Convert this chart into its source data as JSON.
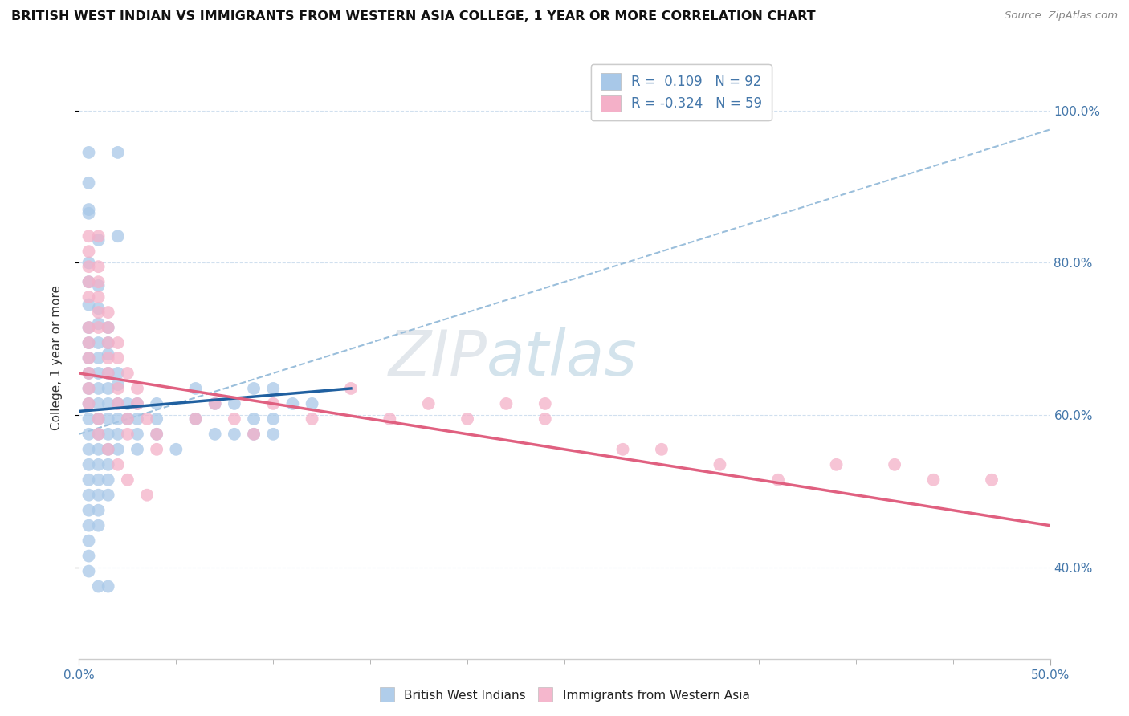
{
  "title": "BRITISH WEST INDIAN VS IMMIGRANTS FROM WESTERN ASIA COLLEGE, 1 YEAR OR MORE CORRELATION CHART",
  "source_text": "Source: ZipAtlas.com",
  "ylabel": "College, 1 year or more",
  "xlim": [
    0.0,
    0.5
  ],
  "ylim": [
    0.28,
    1.07
  ],
  "xticks_minor": [
    0.05,
    0.1,
    0.15,
    0.2,
    0.25,
    0.3,
    0.35,
    0.4,
    0.45
  ],
  "xtick_labels_ends": {
    "0.0": "0.0%",
    "0.50": "50.0%"
  },
  "yticks": [
    0.4,
    0.6,
    0.8,
    1.0
  ],
  "yticklabels_right": [
    "40.0%",
    "60.0%",
    "80.0%",
    "100.0%"
  ],
  "blue_color": "#a8c8e8",
  "pink_color": "#f4b0c8",
  "blue_line_color": "#2060a0",
  "pink_line_color": "#e06080",
  "dashed_line_color": "#90b8d8",
  "R1": 0.109,
  "N1": 92,
  "R2": -0.324,
  "N2": 59,
  "watermark": "ZIPatlas",
  "legend_label1": "British West Indians",
  "legend_label2": "Immigrants from Western Asia",
  "blue_scatter": [
    [
      0.005,
      0.945
    ],
    [
      0.02,
      0.945
    ],
    [
      0.005,
      0.905
    ],
    [
      0.005,
      0.87
    ],
    [
      0.005,
      0.865
    ],
    [
      0.01,
      0.83
    ],
    [
      0.02,
      0.835
    ],
    [
      0.005,
      0.8
    ],
    [
      0.005,
      0.775
    ],
    [
      0.01,
      0.77
    ],
    [
      0.005,
      0.745
    ],
    [
      0.01,
      0.74
    ],
    [
      0.005,
      0.715
    ],
    [
      0.01,
      0.72
    ],
    [
      0.015,
      0.715
    ],
    [
      0.005,
      0.695
    ],
    [
      0.01,
      0.695
    ],
    [
      0.015,
      0.695
    ],
    [
      0.005,
      0.675
    ],
    [
      0.01,
      0.675
    ],
    [
      0.015,
      0.68
    ],
    [
      0.005,
      0.655
    ],
    [
      0.01,
      0.655
    ],
    [
      0.015,
      0.655
    ],
    [
      0.02,
      0.655
    ],
    [
      0.005,
      0.635
    ],
    [
      0.01,
      0.635
    ],
    [
      0.015,
      0.635
    ],
    [
      0.02,
      0.64
    ],
    [
      0.005,
      0.615
    ],
    [
      0.01,
      0.615
    ],
    [
      0.015,
      0.615
    ],
    [
      0.02,
      0.615
    ],
    [
      0.025,
      0.615
    ],
    [
      0.005,
      0.595
    ],
    [
      0.01,
      0.595
    ],
    [
      0.015,
      0.595
    ],
    [
      0.02,
      0.595
    ],
    [
      0.025,
      0.595
    ],
    [
      0.005,
      0.575
    ],
    [
      0.01,
      0.575
    ],
    [
      0.015,
      0.575
    ],
    [
      0.02,
      0.575
    ],
    [
      0.005,
      0.555
    ],
    [
      0.01,
      0.555
    ],
    [
      0.015,
      0.555
    ],
    [
      0.02,
      0.555
    ],
    [
      0.005,
      0.535
    ],
    [
      0.01,
      0.535
    ],
    [
      0.015,
      0.535
    ],
    [
      0.005,
      0.515
    ],
    [
      0.01,
      0.515
    ],
    [
      0.015,
      0.515
    ],
    [
      0.005,
      0.495
    ],
    [
      0.01,
      0.495
    ],
    [
      0.015,
      0.495
    ],
    [
      0.005,
      0.475
    ],
    [
      0.01,
      0.475
    ],
    [
      0.005,
      0.455
    ],
    [
      0.01,
      0.455
    ],
    [
      0.005,
      0.435
    ],
    [
      0.005,
      0.415
    ],
    [
      0.005,
      0.395
    ],
    [
      0.01,
      0.375
    ],
    [
      0.015,
      0.375
    ],
    [
      0.03,
      0.615
    ],
    [
      0.04,
      0.615
    ],
    [
      0.03,
      0.595
    ],
    [
      0.04,
      0.595
    ],
    [
      0.03,
      0.575
    ],
    [
      0.04,
      0.575
    ],
    [
      0.03,
      0.555
    ],
    [
      0.05,
      0.555
    ],
    [
      0.06,
      0.635
    ],
    [
      0.06,
      0.595
    ],
    [
      0.07,
      0.615
    ],
    [
      0.07,
      0.575
    ],
    [
      0.08,
      0.615
    ],
    [
      0.08,
      0.575
    ],
    [
      0.09,
      0.635
    ],
    [
      0.09,
      0.595
    ],
    [
      0.09,
      0.575
    ],
    [
      0.1,
      0.635
    ],
    [
      0.1,
      0.595
    ],
    [
      0.1,
      0.575
    ],
    [
      0.11,
      0.615
    ],
    [
      0.12,
      0.615
    ]
  ],
  "pink_scatter": [
    [
      0.005,
      0.835
    ],
    [
      0.01,
      0.835
    ],
    [
      0.005,
      0.815
    ],
    [
      0.005,
      0.795
    ],
    [
      0.01,
      0.795
    ],
    [
      0.005,
      0.775
    ],
    [
      0.01,
      0.775
    ],
    [
      0.005,
      0.755
    ],
    [
      0.01,
      0.755
    ],
    [
      0.01,
      0.735
    ],
    [
      0.015,
      0.735
    ],
    [
      0.005,
      0.715
    ],
    [
      0.01,
      0.715
    ],
    [
      0.015,
      0.715
    ],
    [
      0.005,
      0.695
    ],
    [
      0.015,
      0.695
    ],
    [
      0.02,
      0.695
    ],
    [
      0.005,
      0.675
    ],
    [
      0.015,
      0.675
    ],
    [
      0.02,
      0.675
    ],
    [
      0.005,
      0.655
    ],
    [
      0.015,
      0.655
    ],
    [
      0.025,
      0.655
    ],
    [
      0.005,
      0.635
    ],
    [
      0.02,
      0.635
    ],
    [
      0.03,
      0.635
    ],
    [
      0.005,
      0.615
    ],
    [
      0.02,
      0.615
    ],
    [
      0.03,
      0.615
    ],
    [
      0.01,
      0.595
    ],
    [
      0.025,
      0.595
    ],
    [
      0.035,
      0.595
    ],
    [
      0.01,
      0.575
    ],
    [
      0.025,
      0.575
    ],
    [
      0.04,
      0.575
    ],
    [
      0.015,
      0.555
    ],
    [
      0.04,
      0.555
    ],
    [
      0.02,
      0.535
    ],
    [
      0.025,
      0.515
    ],
    [
      0.035,
      0.495
    ],
    [
      0.06,
      0.595
    ],
    [
      0.07,
      0.615
    ],
    [
      0.08,
      0.595
    ],
    [
      0.09,
      0.575
    ],
    [
      0.1,
      0.615
    ],
    [
      0.12,
      0.595
    ],
    [
      0.14,
      0.635
    ],
    [
      0.16,
      0.595
    ],
    [
      0.18,
      0.615
    ],
    [
      0.2,
      0.595
    ],
    [
      0.22,
      0.615
    ],
    [
      0.24,
      0.615
    ],
    [
      0.24,
      0.595
    ],
    [
      0.28,
      0.555
    ],
    [
      0.3,
      0.555
    ],
    [
      0.33,
      0.535
    ],
    [
      0.36,
      0.515
    ],
    [
      0.39,
      0.535
    ],
    [
      0.42,
      0.535
    ],
    [
      0.44,
      0.515
    ],
    [
      0.47,
      0.515
    ]
  ],
  "blue_trend_x": [
    0.0,
    0.14
  ],
  "blue_trend_y": [
    0.605,
    0.635
  ],
  "dashed_trend_x": [
    0.0,
    0.5
  ],
  "dashed_trend_y": [
    0.575,
    0.975
  ],
  "pink_trend_x": [
    0.0,
    0.5
  ],
  "pink_trend_y": [
    0.655,
    0.455
  ]
}
